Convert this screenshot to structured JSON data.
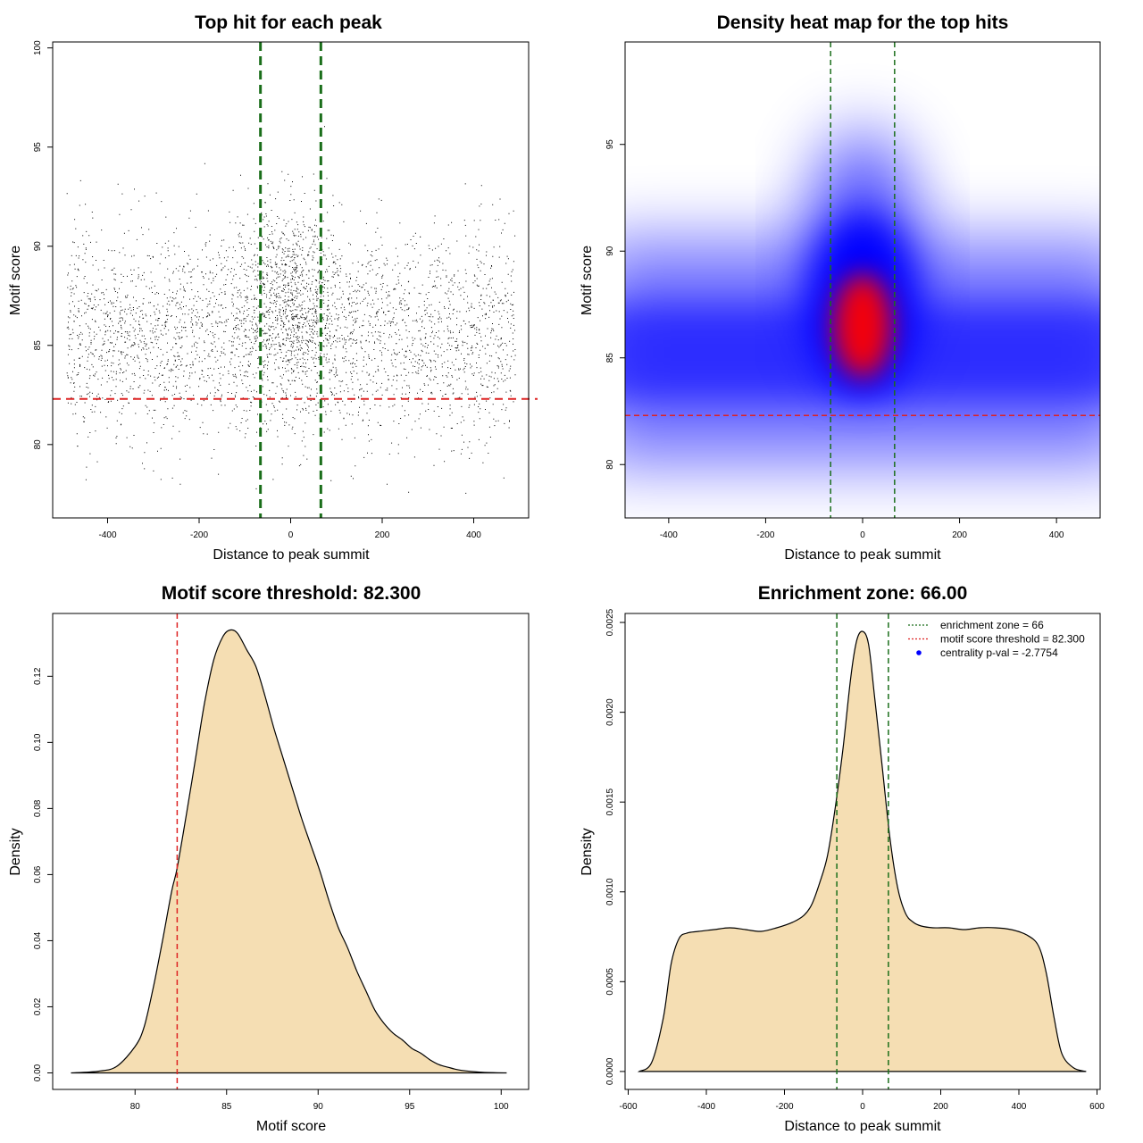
{
  "colors": {
    "threshold_line": "#dd2222",
    "zone_line": "#1a6e1a",
    "fill": "#f5deb3",
    "point": "#000000",
    "heat_low": "#ffffff",
    "heat_mid": "#0000ff",
    "heat_high": "#ff0000",
    "legend_marker": "#0000ff"
  },
  "chart_data": [
    {
      "id": "scatter",
      "type": "scatter",
      "title": "Top hit for each peak",
      "xlabel": "Distance to peak summit",
      "ylabel": "Motif score",
      "xlim": [
        -520,
        520
      ],
      "ylim": [
        76.3,
        100.3
      ],
      "xticks": [
        -400,
        -200,
        0,
        200,
        400
      ],
      "yticks": [
        80,
        85,
        90,
        95,
        100
      ],
      "x_range_points": [
        -490,
        490
      ],
      "threshold": 82.3,
      "zone": [
        -66,
        66
      ],
      "n_points_shown": 26000
    },
    {
      "id": "heatmap",
      "type": "heatmap",
      "title": "Density heat map for the top hits",
      "xlabel": "Distance to peak summit",
      "ylabel": "Motif score",
      "xlim": [
        -490,
        490
      ],
      "ylim": [
        77.5,
        99.8
      ],
      "xticks": [
        -400,
        -200,
        0,
        200,
        400
      ],
      "yticks": [
        80,
        85,
        90,
        95
      ],
      "threshold": 82.3,
      "zone": [
        -66,
        66
      ],
      "hot_spot": {
        "x": 0,
        "score": 86.5
      }
    },
    {
      "id": "score_density",
      "type": "area",
      "title": "Motif score threshold: 82.300",
      "xlabel": "Motif score",
      "ylabel": "Density",
      "xlim": [
        75.5,
        101.5
      ],
      "ylim": [
        -0.005,
        0.139
      ],
      "xticks": [
        80,
        85,
        90,
        95,
        100
      ],
      "yticks": [
        0.0,
        0.02,
        0.04,
        0.06,
        0.08,
        0.1,
        0.12
      ],
      "ytick_labels": [
        "0.00",
        "0.02",
        "0.04",
        "0.06",
        "0.08",
        "0.10",
        "0.12"
      ],
      "threshold": 82.3,
      "x": [
        76.5,
        78,
        79,
        80,
        80.5,
        81,
        81.5,
        82,
        82.3,
        82.8,
        83.3,
        83.8,
        84.3,
        84.8,
        85.2,
        85.6,
        86.1,
        86.6,
        87.1,
        87.6,
        88.1,
        88.6,
        89.1,
        89.6,
        90.1,
        90.6,
        91.1,
        91.6,
        92.1,
        92.6,
        93.1,
        93.6,
        94.1,
        94.6,
        95.1,
        95.6,
        96.1,
        96.6,
        97.1,
        97.6,
        98.1,
        99,
        100.3
      ],
      "y": [
        0,
        0.0005,
        0.002,
        0.008,
        0.014,
        0.026,
        0.04,
        0.055,
        0.062,
        0.078,
        0.095,
        0.112,
        0.125,
        0.132,
        0.134,
        0.133,
        0.128,
        0.123,
        0.114,
        0.104,
        0.095,
        0.086,
        0.077,
        0.069,
        0.061,
        0.052,
        0.044,
        0.038,
        0.031,
        0.025,
        0.019,
        0.015,
        0.012,
        0.01,
        0.0075,
        0.006,
        0.004,
        0.0025,
        0.0017,
        0.001,
        0.0006,
        0.0002,
        0
      ]
    },
    {
      "id": "distance_density",
      "type": "area",
      "title": "Enrichment zone: 66.00",
      "xlabel": "Distance to peak summit",
      "ylabel": "Density",
      "xlim": [
        -608,
        608
      ],
      "ylim": [
        -0.0001,
        0.00255
      ],
      "xticks": [
        -600,
        -400,
        -200,
        0,
        200,
        400,
        600
      ],
      "yticks": [
        0.0,
        0.0005,
        0.001,
        0.0015,
        0.002,
        0.0025
      ],
      "ytick_labels": [
        "0.0000",
        "0.0005",
        "0.0010",
        "0.0015",
        "0.0020",
        "0.0025"
      ],
      "zone": [
        -66,
        66
      ],
      "x": [
        -572,
        -540,
        -510,
        -490,
        -470,
        -450,
        -420,
        -380,
        -340,
        -300,
        -260,
        -220,
        -180,
        -150,
        -130,
        -110,
        -90,
        -70,
        -50,
        -30,
        -15,
        0,
        15,
        30,
        50,
        70,
        90,
        110,
        130,
        150,
        180,
        220,
        260,
        300,
        340,
        380,
        420,
        450,
        470,
        490,
        510,
        540,
        572
      ],
      "y": [
        0,
        5e-05,
        0.0003,
        0.0006,
        0.00074,
        0.00077,
        0.00078,
        0.00079,
        0.0008,
        0.00079,
        0.00078,
        0.0008,
        0.00083,
        0.00087,
        0.00093,
        0.00105,
        0.0012,
        0.00147,
        0.0018,
        0.0022,
        0.0024,
        0.00245,
        0.00238,
        0.0021,
        0.0017,
        0.0013,
        0.00102,
        0.00088,
        0.00083,
        0.00081,
        0.0008,
        0.0008,
        0.00079,
        0.0008,
        0.0008,
        0.00079,
        0.00076,
        0.0007,
        0.00055,
        0.0003,
        0.0001,
        2e-05,
        0
      ],
      "legend": [
        {
          "label": "enrichment zone = 66",
          "style": "dotted",
          "color": "#1a6e1a"
        },
        {
          "label": "motif score threshold = 82.300",
          "style": "dotted",
          "color": "#dd2222"
        },
        {
          "label": "centrality p-val = -2.7754",
          "style": "point",
          "color": "#0000ff"
        }
      ]
    }
  ]
}
